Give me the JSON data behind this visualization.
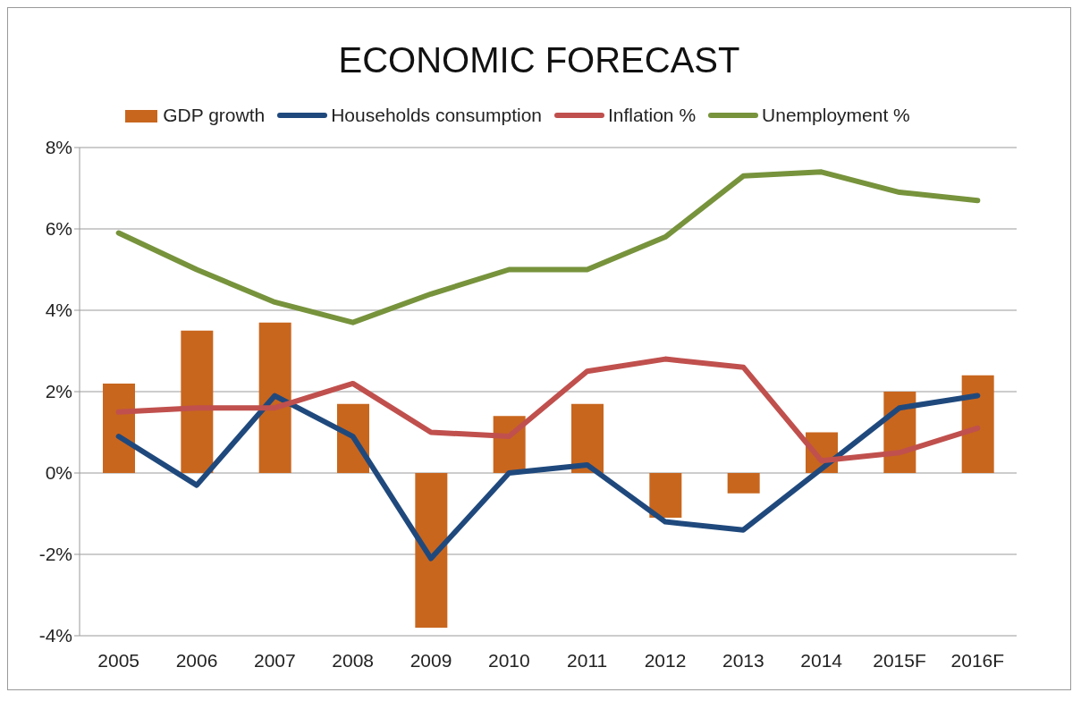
{
  "chart_data": {
    "type": "bar",
    "title": "ECONOMIC FORECAST",
    "categories": [
      "2005",
      "2006",
      "2007",
      "2008",
      "2009",
      "2010",
      "2011",
      "2012",
      "2013",
      "2014",
      "2015F",
      "2016F"
    ],
    "series": [
      {
        "name": "GDP growth",
        "color": "#c8661e",
        "values": [
          2.2,
          3.5,
          3.7,
          1.7,
          -3.8,
          1.4,
          1.7,
          -1.1,
          -0.5,
          1.0,
          2.0,
          2.4
        ]
      },
      {
        "name": "Households consumption",
        "type": "line",
        "color": "#1f497d",
        "values": [
          0.9,
          -0.3,
          1.9,
          0.9,
          -2.1,
          0,
          0.2,
          -1.2,
          -1.4,
          0.1,
          1.6,
          1.9
        ]
      },
      {
        "name": "Inflation %",
        "type": "line",
        "color": "#c0504d",
        "values": [
          1.5,
          1.6,
          1.6,
          2.2,
          1.0,
          0.9,
          2.5,
          2.8,
          2.6,
          0.3,
          0.5,
          1.1
        ]
      },
      {
        "name": "Unemployment %",
        "type": "line",
        "color": "#77933c",
        "values": [
          5.9,
          5.0,
          4.2,
          3.7,
          4.4,
          5.0,
          5.0,
          5.8,
          7.3,
          7.4,
          6.9,
          6.7
        ]
      }
    ],
    "ylim": [
      -4,
      8
    ],
    "yticks": [
      {
        "value": -4,
        "label": "-4%"
      },
      {
        "value": -2,
        "label": "-2%"
      },
      {
        "value": 0,
        "label": "0%"
      },
      {
        "value": 2,
        "label": "2%"
      },
      {
        "value": 4,
        "label": "4%"
      },
      {
        "value": 6,
        "label": "6%"
      },
      {
        "value": 8,
        "label": "8%"
      }
    ],
    "grid": "y",
    "legend": "top",
    "marker": "none",
    "line_style": "solid"
  }
}
